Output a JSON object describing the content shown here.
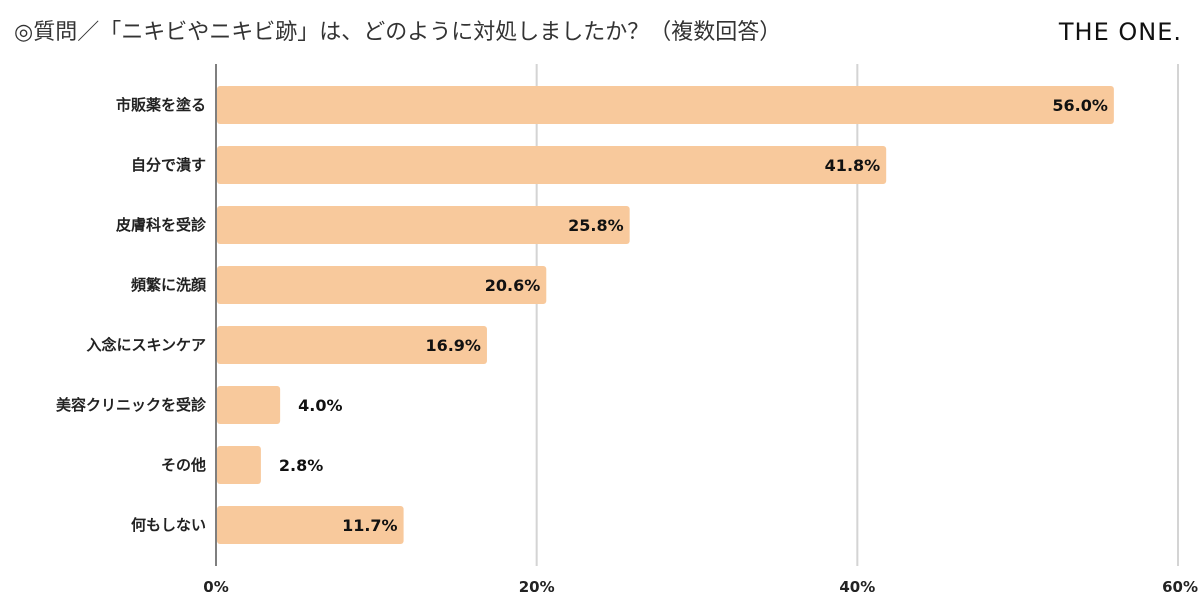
{
  "header": {
    "title": "◎質問／「ニキビやニキビ跡」は、どのように対処しましたか？（複数回答）",
    "brand": "THE ONE."
  },
  "colors": {
    "bar": "#f8c99c",
    "grid": "#d4d4d4",
    "axis": "#555555"
  },
  "chart_data": {
    "type": "bar",
    "orientation": "horizontal",
    "title": "◎質問／「ニキビやニキビ跡」は、どのように対処しましたか？（複数回答）",
    "categories": [
      "市販薬を塗る",
      "自分で潰す",
      "皮膚科を受診",
      "頻繁に洗顔",
      "入念にスキンケア",
      "美容クリニックを受診",
      "その他",
      "何もしない"
    ],
    "values": [
      56.0,
      41.8,
      25.8,
      20.6,
      16.9,
      4.0,
      2.8,
      11.7
    ],
    "value_labels": [
      "56.0%",
      "41.8%",
      "25.8%",
      "20.6%",
      "16.9%",
      "4.0%",
      "2.8%",
      "11.7%"
    ],
    "xlim": [
      0,
      60
    ],
    "xticks": [
      0,
      20,
      40,
      60
    ],
    "xtick_labels": [
      "0%",
      "20%",
      "40%",
      "60%"
    ],
    "grid": true,
    "legend": "none"
  }
}
